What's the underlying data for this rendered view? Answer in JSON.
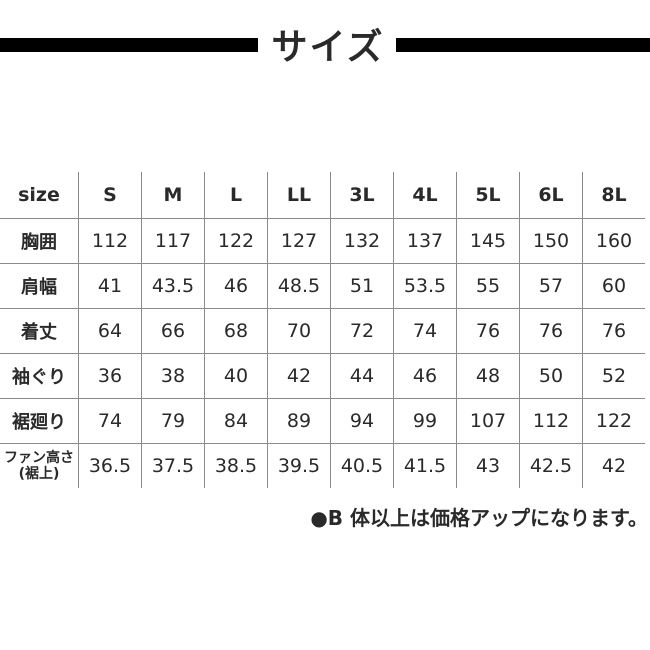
{
  "title": "サイズ",
  "table": {
    "header": [
      "size",
      "S",
      "M",
      "L",
      "LL",
      "3L",
      "4L",
      "5L",
      "6L",
      "8L"
    ],
    "rows": [
      {
        "label": "胸囲",
        "values": [
          "112",
          "117",
          "122",
          "127",
          "132",
          "137",
          "145",
          "150",
          "160"
        ]
      },
      {
        "label": "肩幅",
        "values": [
          "41",
          "43.5",
          "46",
          "48.5",
          "51",
          "53.5",
          "55",
          "57",
          "60"
        ]
      },
      {
        "label": "着丈",
        "values": [
          "64",
          "66",
          "68",
          "70",
          "72",
          "74",
          "76",
          "76",
          "76"
        ]
      },
      {
        "label": "袖ぐり",
        "values": [
          "36",
          "38",
          "40",
          "42",
          "44",
          "46",
          "48",
          "50",
          "52"
        ]
      },
      {
        "label": "裾廻り",
        "values": [
          "74",
          "79",
          "84",
          "89",
          "94",
          "99",
          "107",
          "112",
          "122"
        ]
      },
      {
        "label": "ファン高さ (裾上)",
        "values": [
          "36.5",
          "37.5",
          "38.5",
          "39.5",
          "40.5",
          "41.5",
          "43",
          "42.5",
          "42"
        ]
      }
    ]
  },
  "note": "●B 体以上は価格アップになります。"
}
